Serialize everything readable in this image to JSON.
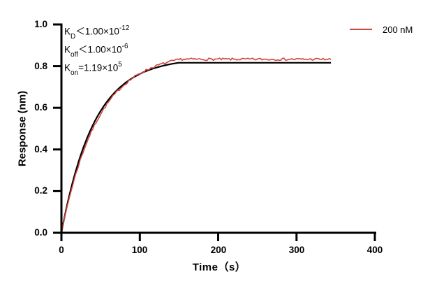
{
  "chart_data": {
    "type": "line",
    "title": "",
    "xlabel": "Time（s）",
    "ylabel": "Response (nm)",
    "xlim": [
      0,
      400
    ],
    "ylim": [
      0.0,
      1.0
    ],
    "x_tick_labels": [
      "0",
      "100",
      "200",
      "300",
      "400"
    ],
    "y_tick_labels": [
      "0.0",
      "0.2",
      "0.4",
      "0.6",
      "0.8",
      "1.0"
    ],
    "grid": "off",
    "legend_position": "top-right-outside",
    "legend": [
      {
        "label": "200 nM",
        "color": "#d0453f"
      }
    ],
    "annotations": [
      {
        "base": "K",
        "sub": "D",
        "mid": "＜1.00×10",
        "sup": "-12"
      },
      {
        "base": "K",
        "sub": "off",
        "mid": "＜1.00×10",
        "sup": "-6"
      },
      {
        "base": "K",
        "sub": "on",
        "mid": "=1.19×10",
        "sup": "5"
      }
    ],
    "series": [
      {
        "name": "fit",
        "color": "#000000",
        "stroke_width": 2.2,
        "model": {
          "rmax": 0.84,
          "kobs": 0.0238,
          "t_assoc_end": 150,
          "t_end": 345,
          "plateau": 0.816,
          "noise": 0,
          "seed": 1
        }
      },
      {
        "name": "200 nM data",
        "color": "#d0453f",
        "stroke_width": 1.6,
        "model": {
          "rmax": 0.865,
          "kobs": 0.0215,
          "t_assoc_end": 150,
          "t_end": 345,
          "plateau": 0.833,
          "noise": 0.0055,
          "seed": 7
        }
      }
    ],
    "sampled_points": {
      "t": [
        0,
        25,
        50,
        75,
        100,
        125,
        150,
        175,
        200,
        225,
        250,
        275,
        300,
        325,
        345
      ],
      "response_200nM": [
        0,
        0.36,
        0.57,
        0.69,
        0.76,
        0.81,
        0.83,
        0.83,
        0.83,
        0.83,
        0.83,
        0.83,
        0.83,
        0.83,
        0.83
      ],
      "fit": [
        0,
        0.38,
        0.59,
        0.7,
        0.76,
        0.8,
        0.82,
        0.82,
        0.82,
        0.82,
        0.82,
        0.82,
        0.82,
        0.82,
        0.82
      ]
    }
  }
}
